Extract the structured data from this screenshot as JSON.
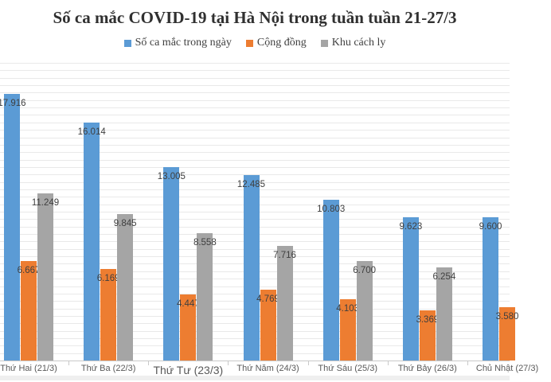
{
  "chart_data": {
    "type": "bar",
    "title": "Số ca mắc COVID-19 tại Hà Nội trong tuần tuần 21-27/3",
    "categories": [
      "Thứ Hai (21/3)",
      "Thứ Ba (22/3)",
      "Thứ Tư (23/3)",
      "Thứ Năm (24/3)",
      "Thứ Sáu (25/3)",
      "Thứ Bảy (26/3)",
      "Chủ Nhật (27/3)"
    ],
    "series": [
      {
        "name": "Số ca mắc trong ngày",
        "color": "#5B9BD5",
        "values": [
          17916,
          16014,
          13005,
          12485,
          10803,
          9623,
          9600
        ]
      },
      {
        "name": "Cộng đồng",
        "color": "#ED7D31",
        "values": [
          6667,
          6169,
          4447,
          4769,
          4103,
          3369,
          3580
        ]
      },
      {
        "name": "Khu cách ly",
        "color": "#A5A5A5",
        "values": [
          11249,
          9845,
          8558,
          7716,
          6700,
          6254,
          null
        ]
      }
    ],
    "ylim": [
      0,
      20000
    ],
    "gridline_step": 500,
    "grid": "horizontal",
    "legend_position": "top",
    "value_labels": "inside-end",
    "emphasized_category_index": 2
  },
  "colors": {
    "gridline": "#e9e9e9",
    "axis": "#c9c9c9",
    "value_label": "#3f3f3f",
    "category_label": "#595959",
    "title": "#303030",
    "footer_strip": "#efefef"
  }
}
